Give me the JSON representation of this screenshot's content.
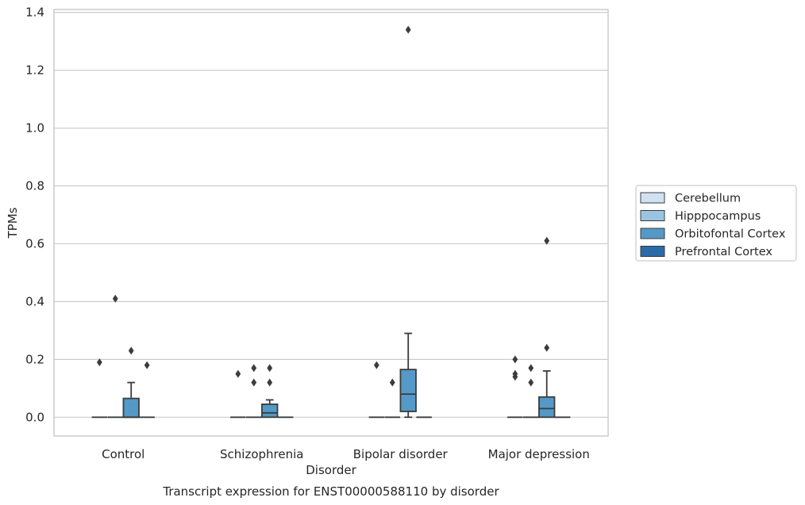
{
  "chart_data": {
    "type": "box",
    "title": "",
    "caption": "Transcript expression for ENST00000588110 by disorder",
    "xlabel": "Disorder",
    "ylabel": "TPMs",
    "ylim": [
      -0.065,
      1.41
    ],
    "yticks": [
      "0.0",
      "0.2",
      "0.4",
      "0.6",
      "0.8",
      "1.0",
      "1.2",
      "1.4"
    ],
    "ytick_values": [
      0,
      0.2,
      0.4,
      0.6,
      0.8,
      1.0,
      1.2,
      1.4
    ],
    "grid": true,
    "legend_position": "right",
    "categories": [
      "Control",
      "Schizophrenia",
      "Bipolar disorder",
      "Major depression"
    ],
    "series": [
      {
        "name": "Cerebellum",
        "color": "#d0e1f2",
        "boxes": [
          {
            "q1": 0,
            "median": 0,
            "q3": 0,
            "whisker_low": 0,
            "whisker_high": 0,
            "outliers": [
              0.19
            ]
          },
          {
            "q1": 0,
            "median": 0,
            "q3": 0,
            "whisker_low": 0,
            "whisker_high": 0,
            "outliers": [
              0.15
            ]
          },
          {
            "q1": 0,
            "median": 0,
            "q3": 0,
            "whisker_low": 0,
            "whisker_high": 0,
            "outliers": [
              0.18
            ]
          },
          {
            "q1": 0,
            "median": 0,
            "q3": 0,
            "whisker_low": 0,
            "whisker_high": 0,
            "outliers": [
              0.2,
              0.15,
              0.14
            ]
          }
        ]
      },
      {
        "name": "Hipppocampus",
        "color": "#9ac4e0",
        "boxes": [
          {
            "q1": 0,
            "median": 0,
            "q3": 0,
            "whisker_low": 0,
            "whisker_high": 0,
            "outliers": [
              0.41
            ]
          },
          {
            "q1": 0,
            "median": 0,
            "q3": 0,
            "whisker_low": 0,
            "whisker_high": 0,
            "outliers": [
              0.17,
              0.12
            ]
          },
          {
            "q1": 0,
            "median": 0,
            "q3": 0,
            "whisker_low": 0,
            "whisker_high": 0,
            "outliers": [
              0.12
            ]
          },
          {
            "q1": 0,
            "median": 0,
            "q3": 0,
            "whisker_low": 0,
            "whisker_high": 0,
            "outliers": [
              0.17,
              0.12
            ]
          }
        ]
      },
      {
        "name": "Orbitofontal Cortex",
        "color": "#5499c7",
        "boxes": [
          {
            "q1": 0,
            "median": 0,
            "q3": 0.065,
            "whisker_low": 0,
            "whisker_high": 0.12,
            "outliers": [
              0.23
            ]
          },
          {
            "q1": 0,
            "median": 0.015,
            "q3": 0.045,
            "whisker_low": 0,
            "whisker_high": 0.06,
            "outliers": [
              0.17,
              0.12
            ]
          },
          {
            "q1": 0.02,
            "median": 0.08,
            "q3": 0.165,
            "whisker_low": 0,
            "whisker_high": 0.29,
            "outliers": [
              1.34
            ]
          },
          {
            "q1": 0,
            "median": 0.03,
            "q3": 0.07,
            "whisker_low": 0,
            "whisker_high": 0.16,
            "outliers": [
              0.61,
              0.24
            ]
          }
        ]
      },
      {
        "name": "Prefrontal Cortex",
        "color": "#2a6ba8",
        "boxes": [
          {
            "q1": 0,
            "median": 0,
            "q3": 0,
            "whisker_low": 0,
            "whisker_high": 0,
            "outliers": [
              0.18
            ]
          },
          {
            "q1": 0,
            "median": 0,
            "q3": 0,
            "whisker_low": 0,
            "whisker_high": 0,
            "outliers": []
          },
          {
            "q1": 0,
            "median": 0,
            "q3": 0,
            "whisker_low": 0,
            "whisker_high": 0,
            "outliers": []
          },
          {
            "q1": 0,
            "median": 0,
            "q3": 0,
            "whisker_low": 0,
            "whisker_high": 0,
            "outliers": []
          }
        ]
      }
    ]
  }
}
